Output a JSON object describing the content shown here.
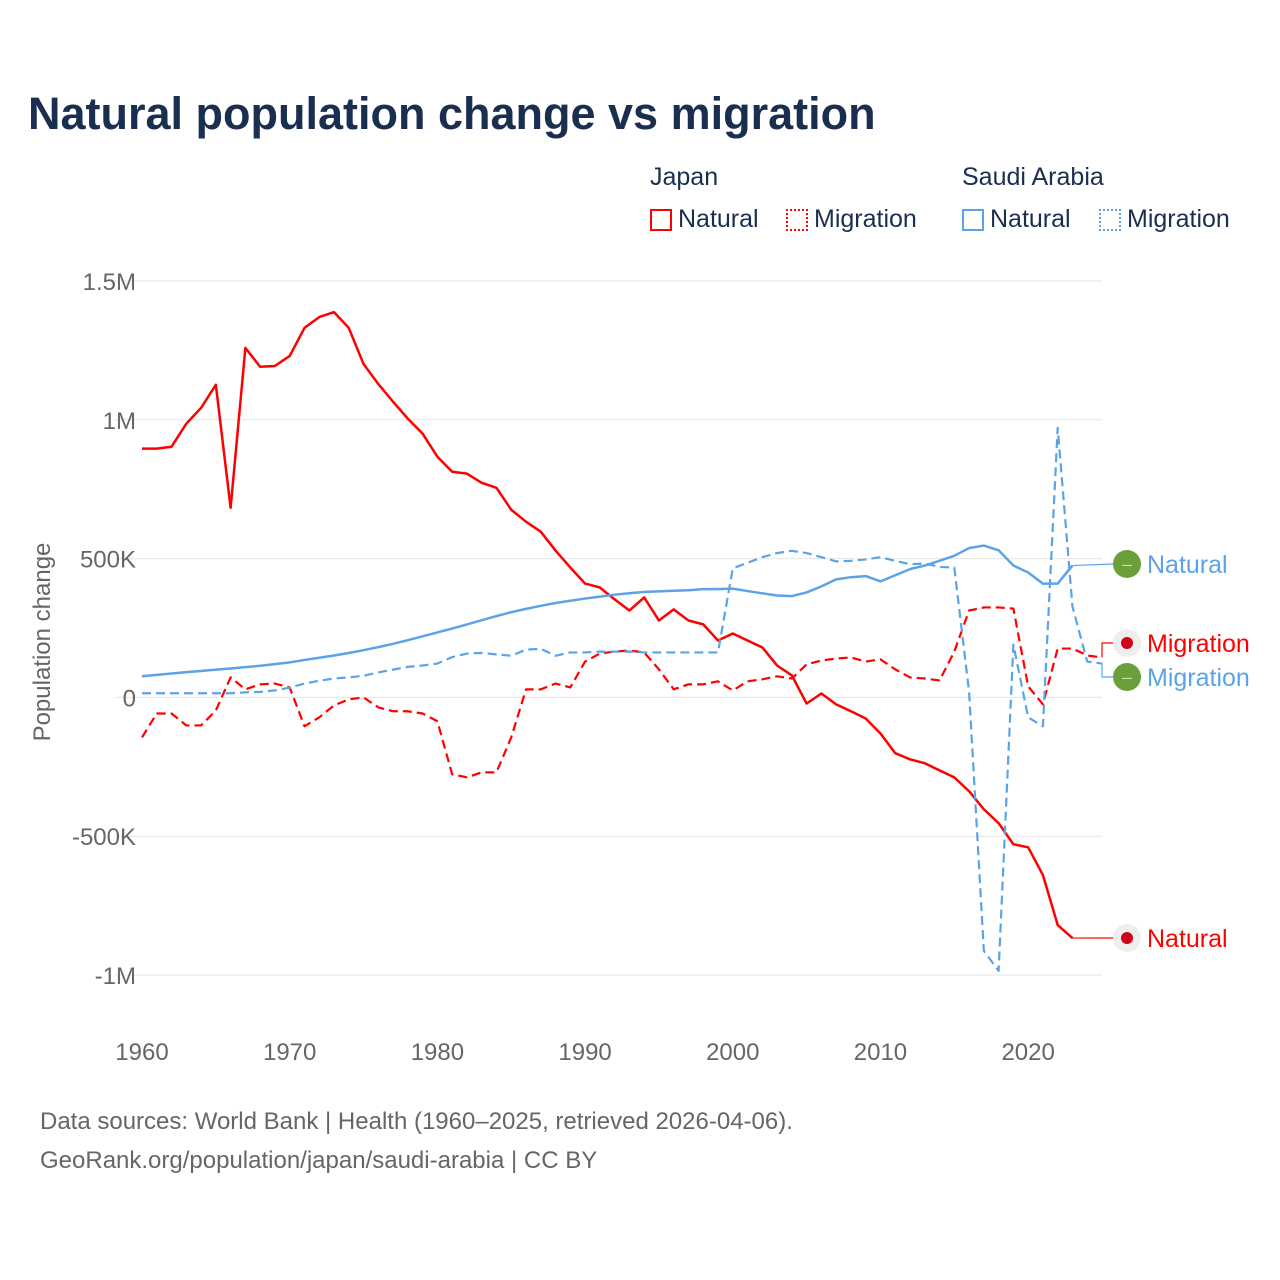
{
  "title": "Natural population change vs migration",
  "legend": {
    "groups": [
      {
        "name": "Japan",
        "items": [
          "Natural",
          "Migration"
        ]
      },
      {
        "name": "Saudi Arabia",
        "items": [
          "Natural",
          "Migration"
        ]
      }
    ]
  },
  "colors": {
    "japan": "#ff0000",
    "saudi": "#5ba3e8",
    "saudi_flag": "#6a9f3a",
    "japan_flag_bg": "#eeeeee",
    "japan_flag_dot": "#d0021b"
  },
  "end_labels": {
    "saudi_natural": "Natural",
    "japan_migration": "Migration",
    "saudi_migration": "Migration",
    "japan_natural": "Natural"
  },
  "source_line1": "Data sources: World Bank | Health (1960–2025, retrieved 2026-04-06).",
  "source_line2": "GeoRank.org/population/japan/saudi-arabia | CC BY",
  "chart_data": {
    "type": "line",
    "title": "Natural population change vs migration",
    "xlabel": "",
    "ylabel": "Population change",
    "xlim": [
      1960,
      2025
    ],
    "ylim": [
      -1000000,
      1500000
    ],
    "yticks": [
      {
        "v": 1500000,
        "l": "1.5M"
      },
      {
        "v": 1000000,
        "l": "1M"
      },
      {
        "v": 500000,
        "l": "500K"
      },
      {
        "v": 0,
        "l": "0"
      },
      {
        "v": -500000,
        "l": "-500K"
      },
      {
        "v": -1000000,
        "l": "-1M"
      }
    ],
    "xticks": [
      {
        "v": 1960,
        "l": "1960"
      },
      {
        "v": 1970,
        "l": "1970"
      },
      {
        "v": 1980,
        "l": "1980"
      },
      {
        "v": 1990,
        "l": "1990"
      },
      {
        "v": 2000,
        "l": "2000"
      },
      {
        "v": 2010,
        "l": "2010"
      },
      {
        "v": 2020,
        "l": "2020"
      }
    ],
    "grid": true,
    "series": [
      {
        "name": "Japan Natural",
        "country": "japan",
        "style": "solid",
        "start": 1960,
        "values_k": [
          896,
          896,
          903,
          986,
          1043,
          1126,
          683,
          1259,
          1191,
          1194,
          1230,
          1331,
          1370,
          1388,
          1331,
          1201,
          1129,
          1065,
          1004,
          950,
          867,
          813,
          806,
          773,
          755,
          676,
          633,
          597,
          529,
          468,
          410,
          396,
          353,
          313,
          360,
          277,
          317,
          277,
          263,
          205,
          230,
          205,
          180,
          115,
          79,
          -22,
          14,
          -25,
          -50,
          -76,
          -130,
          -201,
          -223,
          -237,
          -263,
          -288,
          -338,
          -403,
          -453,
          -529,
          -540,
          -640,
          -820,
          -867
        ]
      },
      {
        "name": "Japan Migration",
        "country": "japan",
        "style": "dashed",
        "start": 1960,
        "values_k": [
          -144,
          -58,
          -58,
          -101,
          -101,
          -47,
          72,
          29,
          47,
          50,
          36,
          -104,
          -72,
          -29,
          -7,
          0,
          -36,
          -50,
          -50,
          -58,
          -86,
          -277,
          -288,
          -270,
          -270,
          -144,
          29,
          29,
          50,
          36,
          129,
          158,
          165,
          169,
          162,
          101,
          29,
          47,
          47,
          58,
          25,
          58,
          65,
          76,
          68,
          119,
          133,
          140,
          144,
          129,
          137,
          101,
          72,
          68,
          61,
          165,
          313,
          324,
          324,
          320,
          40,
          -25,
          176,
          176,
          151,
          144
        ]
      },
      {
        "name": "Saudi Arabia Natural",
        "country": "saudi",
        "style": "solid",
        "start": 1960,
        "values_k": [
          76,
          81,
          86,
          91,
          95,
          100,
          104,
          109,
          114,
          120,
          126,
          135,
          143,
          151,
          160,
          170,
          181,
          193,
          206,
          220,
          234,
          248,
          263,
          278,
          293,
          307,
          319,
          330,
          340,
          348,
          356,
          363,
          370,
          375,
          380,
          382,
          384,
          386,
          390,
          390,
          392,
          383,
          375,
          367,
          365,
          378,
          400,
          425,
          433,
          437,
          418,
          440,
          462,
          475,
          492,
          510,
          538,
          547,
          530,
          475,
          450,
          410,
          410,
          475
        ]
      },
      {
        "name": "Saudi Arabia Migration",
        "country": "saudi",
        "style": "dashed",
        "start": 1960,
        "values_k": [
          15,
          15,
          15,
          15,
          15,
          15,
          15,
          18,
          20,
          25,
          35,
          50,
          60,
          68,
          72,
          78,
          90,
          100,
          110,
          115,
          122,
          145,
          158,
          160,
          155,
          150,
          172,
          175,
          150,
          162,
          162,
          165,
          165,
          165,
          162,
          162,
          162,
          162,
          162,
          162,
          465,
          485,
          505,
          520,
          528,
          520,
          505,
          490,
          492,
          497,
          505,
          492,
          480,
          482,
          470,
          468,
          20,
          -913,
          -985,
          190,
          -72,
          -104,
          971,
          327,
          129,
          122
        ]
      }
    ]
  }
}
